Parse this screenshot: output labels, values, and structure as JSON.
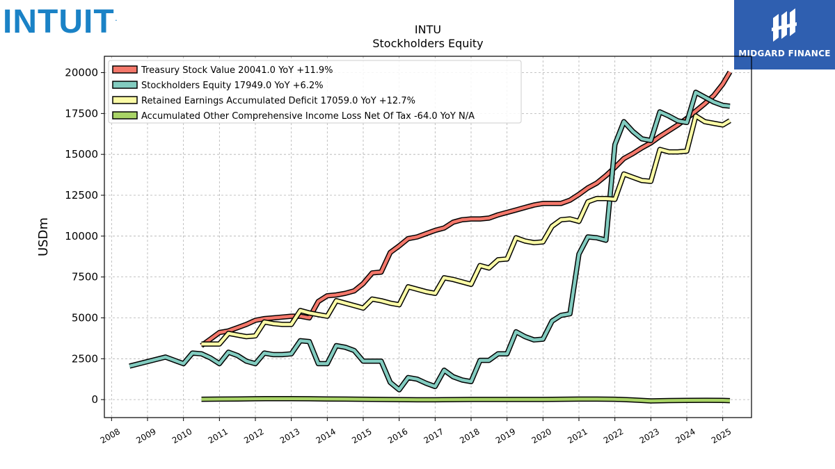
{
  "logos": {
    "left_text": "INTUIT",
    "right_text": "MIDGARD FINANCE"
  },
  "chart_data": {
    "type": "line",
    "title": "INTU",
    "subtitle": "Stockholders  Equity",
    "ylabel": "USDm",
    "xlabel": "",
    "xlim": [
      2007.8,
      2025.8
    ],
    "ylim": [
      -1100,
      21000
    ],
    "yticks": [
      0,
      2500,
      5000,
      7500,
      10000,
      12500,
      15000,
      17500,
      20000
    ],
    "xticks": [
      "2008",
      "2009",
      "2010",
      "2011",
      "2012",
      "2013",
      "2014",
      "2015",
      "2016",
      "2017",
      "2018",
      "2019",
      "2020",
      "2021",
      "2022",
      "2023",
      "2024",
      "2025"
    ],
    "grid": true,
    "legend_position": "top-left",
    "series": [
      {
        "name": "Treasury Stock Value",
        "legend": "Treasury Stock Value  20041.0 YoY +11.9%",
        "color": "#f4786b",
        "x": [
          2010.5,
          2010.75,
          2011.0,
          2011.25,
          2011.5,
          2011.75,
          2012.0,
          2012.25,
          2012.5,
          2012.75,
          2013.0,
          2013.25,
          2013.5,
          2013.75,
          2014.0,
          2014.25,
          2014.5,
          2014.75,
          2015.0,
          2015.25,
          2015.5,
          2015.75,
          2016.0,
          2016.25,
          2016.5,
          2016.75,
          2017.0,
          2017.25,
          2017.5,
          2017.75,
          2018.0,
          2018.25,
          2018.5,
          2018.75,
          2019.0,
          2019.25,
          2019.5,
          2019.75,
          2020.0,
          2020.25,
          2020.5,
          2020.75,
          2021.0,
          2021.25,
          2021.5,
          2021.75,
          2022.0,
          2022.25,
          2022.5,
          2022.75,
          2023.0,
          2023.25,
          2023.5,
          2023.75,
          2024.0,
          2024.25,
          2024.5,
          2024.75,
          2025.0,
          2025.2
        ],
        "y": [
          3300,
          3700,
          4100,
          4200,
          4400,
          4600,
          4850,
          4950,
          5000,
          5050,
          5100,
          5100,
          5000,
          6000,
          6350,
          6400,
          6500,
          6650,
          7100,
          7750,
          7800,
          9000,
          9400,
          9850,
          9950,
          10150,
          10350,
          10500,
          10850,
          11000,
          11050,
          11050,
          11100,
          11300,
          11450,
          11600,
          11750,
          11900,
          12000,
          12000,
          12000,
          12200,
          12550,
          12950,
          13250,
          13700,
          14200,
          14750,
          15050,
          15400,
          15700,
          16100,
          16450,
          16800,
          17200,
          17650,
          18100,
          18600,
          19300,
          20041
        ]
      },
      {
        "name": "Stockholders Equity",
        "legend": "Stockholders Equity  17949.0 YoY +6.2%",
        "color": "#82ccc0",
        "x": [
          2008.5,
          2009.5,
          2010.0,
          2010.25,
          2010.5,
          2010.75,
          2011.0,
          2011.25,
          2011.5,
          2011.75,
          2012.0,
          2012.25,
          2012.5,
          2012.75,
          2013.0,
          2013.25,
          2013.5,
          2013.75,
          2014.0,
          2014.25,
          2014.5,
          2014.75,
          2015.0,
          2015.25,
          2015.5,
          2015.75,
          2016.0,
          2016.25,
          2016.5,
          2016.75,
          2017.0,
          2017.25,
          2017.5,
          2017.75,
          2018.0,
          2018.25,
          2018.5,
          2018.75,
          2019.0,
          2019.25,
          2019.5,
          2019.75,
          2020.0,
          2020.25,
          2020.5,
          2020.75,
          2021.0,
          2021.25,
          2021.5,
          2021.75,
          2022.0,
          2022.25,
          2022.5,
          2022.75,
          2023.0,
          2023.25,
          2023.5,
          2023.75,
          2024.0,
          2024.25,
          2024.5,
          2024.75,
          2025.0,
          2025.2
        ],
        "y": [
          2050,
          2600,
          2200,
          2850,
          2800,
          2550,
          2200,
          2900,
          2700,
          2350,
          2200,
          2850,
          2750,
          2750,
          2800,
          3600,
          3550,
          2200,
          2200,
          3300,
          3200,
          3000,
          2350,
          2350,
          2350,
          1050,
          600,
          1350,
          1250,
          1000,
          800,
          1800,
          1400,
          1200,
          1100,
          2400,
          2400,
          2800,
          2800,
          4150,
          3850,
          3650,
          3700,
          4800,
          5150,
          5250,
          8900,
          9950,
          9900,
          9750,
          15600,
          17000,
          16400,
          15950,
          15850,
          17600,
          17350,
          17050,
          16950,
          18800,
          18500,
          18200,
          18000,
          17949
        ]
      },
      {
        "name": "Retained Earnings Accumulated Deficit",
        "legend": "Retained Earnings Accumulated Deficit  17059.0 YoY +12.7%",
        "color": "#fbfba6",
        "x": [
          2010.5,
          2011.0,
          2011.25,
          2011.5,
          2011.75,
          2012.0,
          2012.25,
          2012.5,
          2012.75,
          2013.0,
          2013.25,
          2013.5,
          2013.75,
          2014.0,
          2014.25,
          2014.5,
          2014.75,
          2015.0,
          2015.25,
          2015.5,
          2015.75,
          2016.0,
          2016.25,
          2016.5,
          2016.75,
          2017.0,
          2017.25,
          2017.5,
          2017.75,
          2018.0,
          2018.25,
          2018.5,
          2018.75,
          2019.0,
          2019.25,
          2019.5,
          2019.75,
          2020.0,
          2020.25,
          2020.5,
          2020.75,
          2021.0,
          2021.25,
          2021.5,
          2021.75,
          2022.0,
          2022.25,
          2022.5,
          2022.75,
          2023.0,
          2023.25,
          2023.5,
          2023.75,
          2024.0,
          2024.25,
          2024.5,
          2024.75,
          2025.0,
          2025.2
        ],
        "y": [
          3400,
          3400,
          4050,
          3950,
          3850,
          3900,
          4750,
          4650,
          4600,
          4600,
          5450,
          5300,
          5200,
          5100,
          6050,
          5900,
          5750,
          5600,
          6150,
          6050,
          5900,
          5800,
          6900,
          6750,
          6600,
          6500,
          7450,
          7350,
          7200,
          7050,
          8200,
          8050,
          8550,
          8600,
          9900,
          9700,
          9600,
          9650,
          10600,
          11000,
          11050,
          10900,
          12100,
          12300,
          12300,
          12250,
          13800,
          13600,
          13400,
          13350,
          15300,
          15150,
          15150,
          15200,
          17350,
          17000,
          16900,
          16800,
          17059
        ]
      },
      {
        "name": "Accumulated Other Comprehensive Income Loss Net Of Tax",
        "legend": "Accumulated Other Comprehensive Income Loss Net Of Tax  -64.0 YoY N/A",
        "color": "#a9d466",
        "x": [
          2010.5,
          2011.0,
          2011.5,
          2012.0,
          2012.5,
          2013.0,
          2013.5,
          2014.0,
          2014.5,
          2015.0,
          2015.5,
          2016.0,
          2016.5,
          2017.0,
          2017.5,
          2018.0,
          2018.5,
          2019.0,
          2019.5,
          2020.0,
          2020.5,
          2021.0,
          2021.5,
          2022.0,
          2022.5,
          2023.0,
          2023.5,
          2024.0,
          2024.5,
          2025.0,
          2025.2
        ],
        "y": [
          20,
          30,
          40,
          50,
          60,
          60,
          50,
          40,
          30,
          20,
          10,
          0,
          -10,
          -10,
          0,
          10,
          10,
          10,
          10,
          10,
          20,
          30,
          30,
          20,
          -20,
          -80,
          -60,
          -50,
          -40,
          -50,
          -64
        ]
      }
    ]
  }
}
